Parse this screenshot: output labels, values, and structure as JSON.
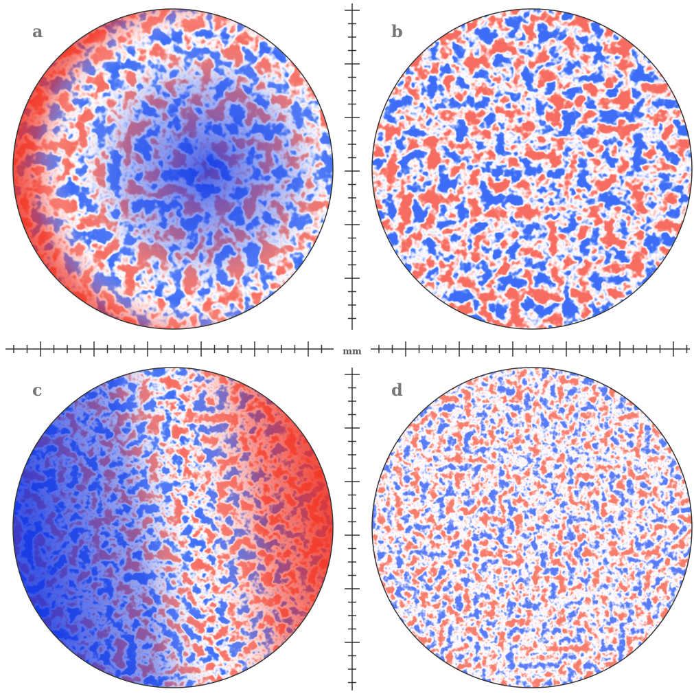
{
  "panels": [
    {
      "label": "a"
    },
    {
      "label": "b"
    },
    {
      "label": "c"
    },
    {
      "label": "d"
    }
  ],
  "scale": {
    "unit": "mm"
  }
}
